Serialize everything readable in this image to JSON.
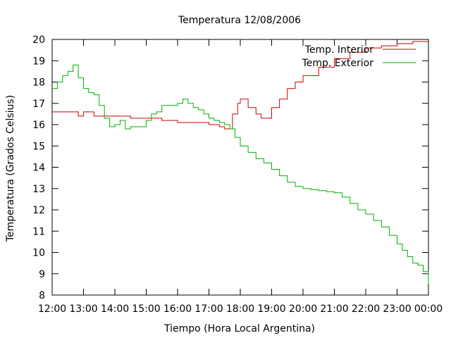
{
  "chart_data": {
    "type": "line",
    "title": "Temperatura 12/08/2006",
    "xlabel": "Tiempo (Hora Local Argentina)",
    "ylabel": "Temperatura (Grados Celsius)",
    "x_ticks": [
      "12:00",
      "13:00",
      "14:00",
      "15:00",
      "16:00",
      "17:00",
      "18:00",
      "19:00",
      "20:00",
      "21:00",
      "22:00",
      "23:00",
      "00:00"
    ],
    "y_ticks": [
      8,
      9,
      10,
      11,
      12,
      13,
      14,
      15,
      16,
      17,
      18,
      19,
      20
    ],
    "xlim": [
      "12:00",
      "00:00"
    ],
    "ylim": [
      8,
      20
    ],
    "grid": false,
    "legend_position": "top-right",
    "series": [
      {
        "name": "Temp. Interior",
        "color": "#cc0000",
        "x": [
          "12:00",
          "12:45",
          "12:50",
          "13:00",
          "13:15",
          "13:20",
          "13:30",
          "14:00",
          "14:30",
          "15:00",
          "15:30",
          "16:00",
          "16:30",
          "17:00",
          "17:20",
          "17:30",
          "17:45",
          "17:55",
          "18:00",
          "18:15",
          "18:30",
          "18:40",
          "18:50",
          "19:00",
          "19:15",
          "19:30",
          "19:45",
          "20:00",
          "20:30",
          "21:00",
          "21:30",
          "22:00",
          "22:30",
          "23:00",
          "23:30",
          "00:00"
        ],
        "values": [
          16.6,
          16.6,
          16.4,
          16.6,
          16.6,
          16.4,
          16.4,
          16.4,
          16.3,
          16.3,
          16.2,
          16.1,
          16.1,
          16.0,
          15.9,
          15.8,
          16.5,
          17.0,
          17.2,
          16.8,
          16.5,
          16.3,
          16.3,
          16.8,
          17.2,
          17.7,
          18.0,
          18.3,
          18.7,
          19.1,
          19.4,
          19.6,
          19.7,
          19.8,
          19.9,
          19.9
        ]
      },
      {
        "name": "Temp. Exterior",
        "color": "#00b000",
        "x": [
          "12:00",
          "12:10",
          "12:20",
          "12:30",
          "12:40",
          "12:50",
          "13:00",
          "13:10",
          "13:20",
          "13:30",
          "13:40",
          "13:50",
          "14:00",
          "14:10",
          "14:20",
          "14:30",
          "14:40",
          "14:50",
          "15:00",
          "15:10",
          "15:20",
          "15:30",
          "15:40",
          "15:50",
          "16:00",
          "16:10",
          "16:20",
          "16:30",
          "16:40",
          "16:50",
          "17:00",
          "17:10",
          "17:20",
          "17:30",
          "17:40",
          "17:50",
          "18:00",
          "18:15",
          "18:30",
          "18:45",
          "19:00",
          "19:15",
          "19:30",
          "19:45",
          "20:00",
          "20:15",
          "20:30",
          "20:45",
          "21:00",
          "21:15",
          "21:30",
          "21:45",
          "22:00",
          "22:15",
          "22:30",
          "22:45",
          "23:00",
          "23:10",
          "23:20",
          "23:30",
          "23:40",
          "23:50",
          "00:00"
        ],
        "values": [
          17.7,
          18.0,
          18.3,
          18.5,
          18.8,
          18.2,
          17.7,
          17.5,
          17.4,
          16.9,
          16.3,
          15.9,
          16.0,
          16.2,
          15.8,
          15.9,
          15.9,
          15.9,
          16.2,
          16.5,
          16.6,
          16.9,
          16.9,
          16.9,
          17.0,
          17.2,
          17.0,
          16.8,
          16.7,
          16.5,
          16.3,
          16.2,
          16.1,
          16.0,
          15.8,
          15.4,
          15.0,
          14.7,
          14.4,
          14.2,
          13.9,
          13.6,
          13.3,
          13.1,
          13.0,
          12.95,
          12.9,
          12.85,
          12.8,
          12.6,
          12.3,
          12.0,
          11.8,
          11.5,
          11.2,
          10.8,
          10.4,
          10.1,
          9.8,
          9.5,
          9.4,
          9.1,
          8.5
        ]
      }
    ]
  }
}
